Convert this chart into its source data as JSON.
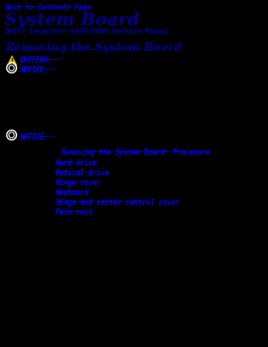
{
  "bg_color": "#000000",
  "text_color_blue_link": "#0000FF",
  "blue_nav": "#0000CD",
  "blue_head": "#00008B",
  "nav_text": "Back to Contents Page",
  "title": "System Board",
  "subtitle": "Dell™ Inspiron™ 8500/8600 Service Manual",
  "section": "Removing the System Board",
  "caution_label": "CAUTION:",
  "notice_label": "NOTICE:",
  "notice2_label": "NOTICE:",
  "items_title": "Removing the System Board: Procedure",
  "list_items": [
    "Hard drive",
    "Optical drive",
    "Hinge cover",
    "Keyboard",
    "Hinge and center control cover",
    "Palm rest"
  ]
}
